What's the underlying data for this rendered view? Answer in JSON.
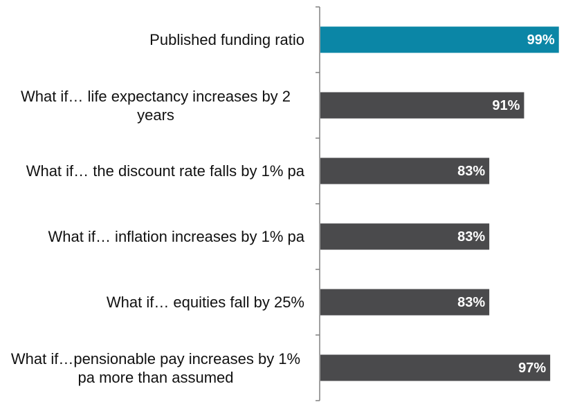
{
  "chart_data": {
    "type": "barh",
    "categories": [
      "Published funding ratio",
      "What if… life expectancy increases by 2 years",
      "What if… the discount rate falls by 1% pa",
      "What if… inflation increases by 1% pa",
      "What if… equities fall by 25%",
      "What if…pensionable pay increases by 1% pa more than assumed"
    ],
    "values": [
      99,
      91,
      83,
      83,
      83,
      97
    ],
    "value_labels": [
      "99%",
      "91%",
      "83%",
      "83%",
      "83%",
      "97%"
    ],
    "colors": [
      "#0b86a6",
      "#4a4a4c",
      "#4a4a4c",
      "#4a4a4c",
      "#4a4a4c",
      "#4a4a4c"
    ],
    "xlim": [
      44,
      100
    ]
  }
}
